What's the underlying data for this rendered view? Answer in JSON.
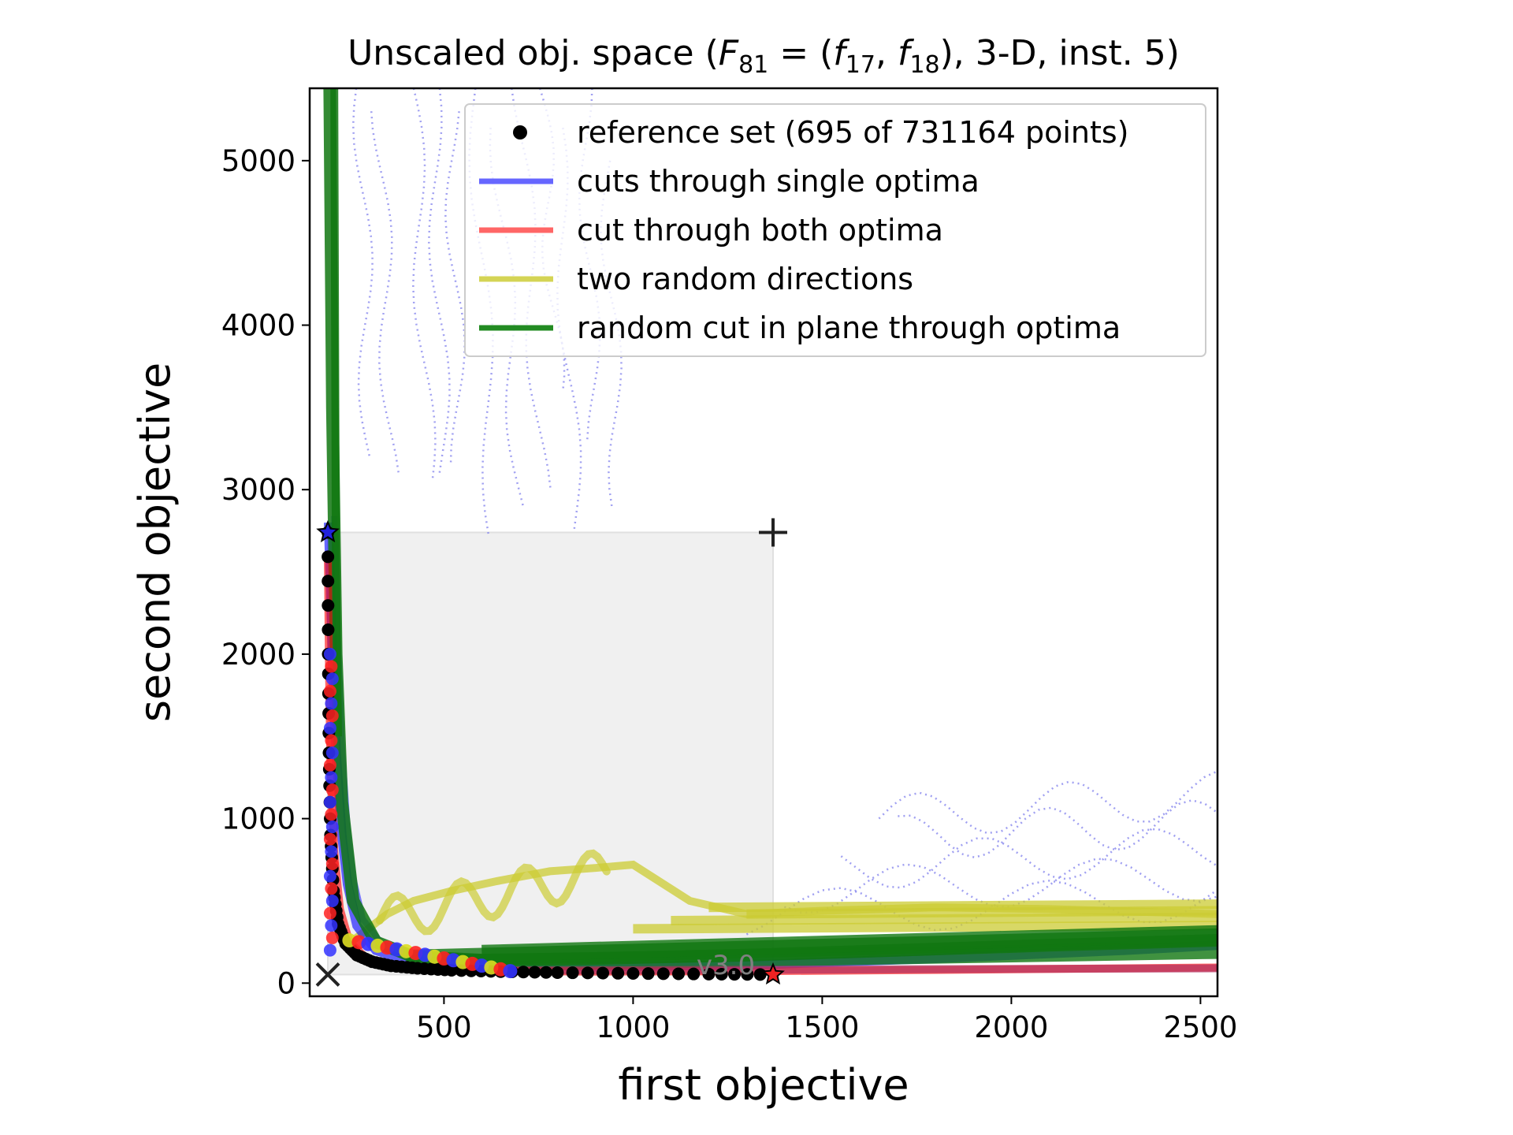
{
  "chart_data": {
    "type": "line",
    "title": "Unscaled obj. space (F81 = (f17, f18), 3-D, inst. 5)",
    "title_parts": {
      "prefix": "Unscaled obj. space (",
      "F": "F",
      "F_sub": "81",
      "eq": " = (",
      "f1": "f",
      "f1_sub": "17",
      "comma": ", ",
      "f2": "f",
      "f2_sub": "18",
      "suffix": "), 3-D, inst. 5)"
    },
    "xlabel": "first objective",
    "ylabel": "second objective",
    "xlim": [
      145,
      2545
    ],
    "ylim": [
      -80,
      5440
    ],
    "xticks": [
      500,
      1000,
      1500,
      2000,
      2500
    ],
    "yticks": [
      0,
      1000,
      2000,
      3000,
      4000,
      5000
    ],
    "grid": false,
    "legend_position": "top-right",
    "version_label": "v3.0",
    "colors": {
      "reference": "#000000",
      "single_optima": "#0000ff",
      "both_optima": "#ff0000",
      "random_directions": "#cccc33",
      "plane_cut": "#117711",
      "region": "#f0f0f0",
      "dotted_lines": "#8888ee"
    },
    "legend": [
      {
        "label": "reference set (695 of 731164 points)",
        "marker": "dot",
        "color": "#000000"
      },
      {
        "label": "cuts through single optima",
        "marker": "line",
        "color": "#6666ff"
      },
      {
        "label": "cut through both optima",
        "marker": "line",
        "color": "#ff6666"
      },
      {
        "label": "two random directions",
        "marker": "line",
        "color": "#d4d455"
      },
      {
        "label": "random cut in plane through optima",
        "marker": "line",
        "color": "#228b22"
      }
    ],
    "ideal_point": [
      193,
      52
    ],
    "nadir_point": [
      1370,
      2740
    ],
    "optimum_f1": [
      1370,
      52
    ],
    "optimum_f2": [
      193,
      2740
    ],
    "series": [
      {
        "name": "reference set (695 of 731164 points)",
        "kind": "reference",
        "x": [
          193,
          194,
          196,
          200,
          208,
          220,
          240,
          270,
          310,
          360,
          430,
          520,
          650,
          800,
          1000,
          1200,
          1370
        ],
        "y": [
          2740,
          2000,
          1400,
          900,
          560,
          360,
          240,
          170,
          130,
          105,
          90,
          78,
          70,
          64,
          59,
          55,
          52
        ]
      },
      {
        "name": "cuts through single optima",
        "kind": "single",
        "x": [
          195,
          205,
          215,
          230,
          245,
          270,
          320,
          400,
          600,
          900,
          1300,
          1800,
          2300,
          2545
        ],
        "y": [
          2800,
          2000,
          1400,
          900,
          600,
          350,
          200,
          140,
          110,
          100,
          110,
          150,
          200,
          230
        ]
      },
      {
        "name": "cut through both optima",
        "kind": "both",
        "x": [
          193,
          196,
          200,
          210,
          225,
          250,
          300,
          400,
          600,
          900,
          1300,
          1800,
          2300,
          2545
        ],
        "y": [
          2600,
          1900,
          1300,
          800,
          450,
          250,
          140,
          95,
          75,
          70,
          72,
          80,
          90,
          95
        ]
      },
      {
        "name": "two random directions",
        "kind": "random",
        "x": [
          260,
          300,
          350,
          420,
          520,
          640,
          780,
          900,
          1000,
          1150,
          1300,
          1500,
          1800,
          2100,
          2400,
          2545
        ],
        "y": [
          260,
          330,
          420,
          500,
          560,
          620,
          680,
          700,
          720,
          500,
          420,
          440,
          460,
          450,
          430,
          420
        ]
      },
      {
        "name": "random cut in plane through optima",
        "kind": "plane",
        "x": [
          198,
          205,
          215,
          230,
          260,
          320,
          420,
          600,
          900,
          1300,
          1700,
          2100,
          2545
        ],
        "y": [
          5440,
          3500,
          2000,
          1100,
          500,
          250,
          160,
          140,
          150,
          170,
          200,
          230,
          260
        ]
      }
    ]
  }
}
